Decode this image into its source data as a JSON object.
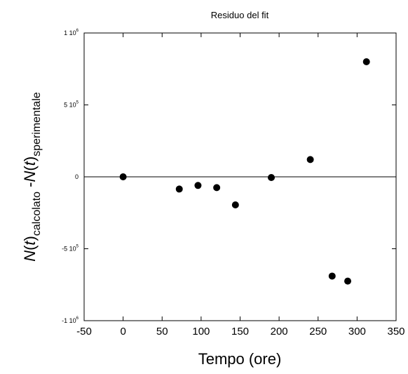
{
  "chart_data": {
    "type": "scatter",
    "title": "Residuo del fit",
    "xlabel": "Tempo (ore)",
    "ylabel": {
      "parts": [
        {
          "text": "N",
          "style": "italic",
          "sub": false
        },
        {
          "text": "(",
          "style": "normal",
          "sub": false
        },
        {
          "text": "t",
          "style": "italic",
          "sub": false
        },
        {
          "text": ")",
          "style": "normal",
          "sub": false
        },
        {
          "text": "calcolato",
          "style": "normal",
          "sub": true
        },
        {
          "text": " -",
          "style": "normal",
          "sub": false
        },
        {
          "text": "N",
          "style": "italic",
          "sub": false
        },
        {
          "text": "(",
          "style": "normal",
          "sub": false
        },
        {
          "text": "t",
          "style": "italic",
          "sub": false
        },
        {
          "text": ")",
          "style": "normal",
          "sub": false
        },
        {
          "text": "sperimentale",
          "style": "normal",
          "sub": true
        }
      ]
    },
    "xlim": [
      -50,
      350
    ],
    "ylim": [
      -1000000,
      1000000
    ],
    "x_ticks": [
      {
        "value": -50,
        "label": "-50"
      },
      {
        "value": 0,
        "label": "0"
      },
      {
        "value": 50,
        "label": "50"
      },
      {
        "value": 100,
        "label": "100"
      },
      {
        "value": 150,
        "label": "150"
      },
      {
        "value": 200,
        "label": "200"
      },
      {
        "value": 250,
        "label": "250"
      },
      {
        "value": 300,
        "label": "300"
      },
      {
        "value": 350,
        "label": "350"
      }
    ],
    "y_ticks": [
      {
        "value": 1000000,
        "mantissa": "1 10",
        "exp": "6"
      },
      {
        "value": 500000,
        "mantissa": "5 10",
        "exp": "5"
      },
      {
        "value": 0,
        "mantissa": "0",
        "exp": ""
      },
      {
        "value": -500000,
        "mantissa": "-5 10",
        "exp": "5"
      },
      {
        "value": -1000000,
        "mantissa": "-1 10",
        "exp": "6"
      }
    ],
    "zero_line": true,
    "grid": false,
    "marker_color": "#000000",
    "points": [
      {
        "x": 0,
        "y": 0
      },
      {
        "x": 72,
        "y": -85000
      },
      {
        "x": 96,
        "y": -60000
      },
      {
        "x": 120,
        "y": -75000
      },
      {
        "x": 144,
        "y": -195000
      },
      {
        "x": 190,
        "y": -5000
      },
      {
        "x": 240,
        "y": 120000
      },
      {
        "x": 268,
        "y": -690000
      },
      {
        "x": 288,
        "y": -725000
      },
      {
        "x": 312,
        "y": 800000
      }
    ]
  }
}
